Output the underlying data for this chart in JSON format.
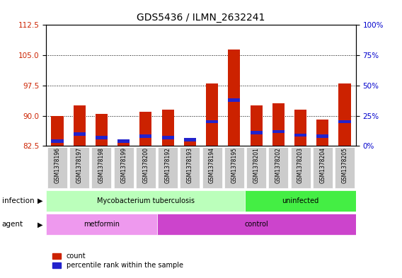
{
  "title": "GDS5436 / ILMN_2632241",
  "samples": [
    "GSM1378196",
    "GSM1378197",
    "GSM1378198",
    "GSM1378199",
    "GSM1378200",
    "GSM1378192",
    "GSM1378193",
    "GSM1378194",
    "GSM1378195",
    "GSM1378201",
    "GSM1378202",
    "GSM1378203",
    "GSM1378204",
    "GSM1378205"
  ],
  "count_values": [
    90.0,
    92.5,
    90.5,
    84.0,
    91.0,
    91.5,
    84.0,
    98.0,
    106.5,
    92.5,
    93.0,
    91.5,
    89.0,
    98.0
  ],
  "percentile_values": [
    4.0,
    10.0,
    7.0,
    4.0,
    8.0,
    7.0,
    5.0,
    20.0,
    38.0,
    11.0,
    12.0,
    9.0,
    8.0,
    20.0
  ],
  "base_value": 82.5,
  "ylim_left": [
    82.5,
    112.5
  ],
  "ylim_right": [
    0,
    100
  ],
  "yticks_left": [
    82.5,
    90.0,
    97.5,
    105.0,
    112.5
  ],
  "yticks_right": [
    0,
    25,
    50,
    75,
    100
  ],
  "bar_color": "#cc2200",
  "percentile_color": "#2222cc",
  "bg_color": "#cccccc",
  "infection_groups": [
    {
      "label": "Mycobacterium tuberculosis",
      "start": 0,
      "end": 9,
      "color": "#bbffbb"
    },
    {
      "label": "uninfected",
      "start": 9,
      "end": 14,
      "color": "#44ee44"
    }
  ],
  "agent_groups": [
    {
      "label": "metformin",
      "start": 0,
      "end": 5,
      "color": "#ee99ee"
    },
    {
      "label": "control",
      "start": 5,
      "end": 14,
      "color": "#cc44cc"
    }
  ],
  "infection_label": "infection",
  "agent_label": "agent",
  "legend_count": "count",
  "legend_percentile": "percentile rank within the sample",
  "axis_label_color_left": "#cc2200",
  "axis_label_color_right": "#0000cc",
  "title_fontsize": 10
}
